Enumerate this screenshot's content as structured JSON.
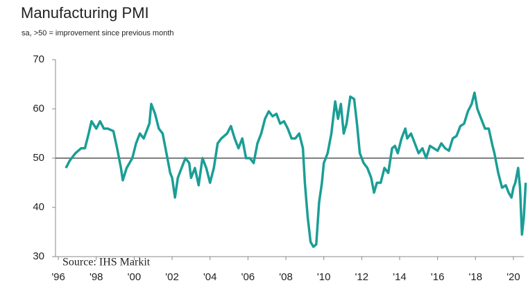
{
  "chart_data": {
    "type": "line",
    "title": "Manufacturing PMI",
    "subtitle": "sa, >50 = improvement since previous month",
    "source": "Source: IHS Markit",
    "xlim": [
      1995.85,
      2020.55
    ],
    "ylim": [
      30,
      70
    ],
    "yticks": [
      30,
      40,
      50,
      60,
      70
    ],
    "xticks": [
      {
        "value": 1996,
        "label": "'96"
      },
      {
        "value": 1998,
        "label": "'98"
      },
      {
        "value": 2000,
        "label": "'00"
      },
      {
        "value": 2002,
        "label": "'02"
      },
      {
        "value": 2004,
        "label": "'04"
      },
      {
        "value": 2006,
        "label": "'06"
      },
      {
        "value": 2008,
        "label": "'08"
      },
      {
        "value": 2010,
        "label": "'10"
      },
      {
        "value": 2012,
        "label": "'12"
      },
      {
        "value": 2014,
        "label": "'14"
      },
      {
        "value": 2016,
        "label": "'16"
      },
      {
        "value": 2018,
        "label": "'18"
      },
      {
        "value": 2020,
        "label": "'20"
      }
    ],
    "reference_line": 50,
    "grid": false,
    "series": [
      {
        "color": "#1a9e96",
        "x": [
          1996.4,
          1996.6,
          1996.9,
          1997.2,
          1997.4,
          1997.6,
          1997.75,
          1998.0,
          1998.2,
          1998.4,
          1998.6,
          1998.9,
          1999.1,
          1999.3,
          1999.4,
          1999.6,
          1999.9,
          2000.1,
          2000.3,
          2000.5,
          2000.8,
          2000.9,
          2001.1,
          2001.3,
          2001.5,
          2001.7,
          2001.9,
          2002.0,
          2002.15,
          2002.3,
          2002.5,
          2002.7,
          2002.9,
          2003.0,
          2003.2,
          2003.4,
          2003.6,
          2003.8,
          2004.0,
          2004.2,
          2004.4,
          2004.6,
          2004.9,
          2005.1,
          2005.3,
          2005.5,
          2005.7,
          2005.9,
          2006.1,
          2006.3,
          2006.5,
          2006.7,
          2006.9,
          2007.1,
          2007.3,
          2007.5,
          2007.7,
          2007.9,
          2008.1,
          2008.3,
          2008.5,
          2008.7,
          2008.9,
          2009.0,
          2009.15,
          2009.3,
          2009.45,
          2009.6,
          2009.75,
          2009.9,
          2010.0,
          2010.2,
          2010.4,
          2010.6,
          2010.75,
          2010.9,
          2011.05,
          2011.2,
          2011.4,
          2011.6,
          2011.75,
          2011.9,
          2012.1,
          2012.3,
          2012.5,
          2012.65,
          2012.8,
          2013.0,
          2013.2,
          2013.4,
          2013.6,
          2013.75,
          2013.9,
          2014.1,
          2014.3,
          2014.4,
          2014.6,
          2014.8,
          2015.0,
          2015.2,
          2015.4,
          2015.6,
          2015.8,
          2016.0,
          2016.2,
          2016.4,
          2016.6,
          2016.8,
          2017.0,
          2017.2,
          2017.4,
          2017.6,
          2017.8,
          2017.95,
          2018.1,
          2018.3,
          2018.5,
          2018.7,
          2018.9,
          2019.0,
          2019.2,
          2019.4,
          2019.6,
          2019.75,
          2019.9,
          2020.0,
          2020.1,
          2020.25,
          2020.35,
          2020.45,
          2020.55,
          2020.65
        ],
        "values": [
          48,
          49.5,
          51,
          52,
          52,
          55,
          57.5,
          56,
          57.5,
          56,
          56,
          55.5,
          52,
          48,
          45.5,
          48,
          50,
          53,
          55,
          54,
          57,
          61,
          59,
          56,
          55,
          51,
          47,
          46,
          42,
          46,
          48,
          50,
          49,
          46,
          48,
          44.5,
          50,
          48,
          45,
          48,
          53,
          54,
          55,
          56.5,
          54,
          52,
          54,
          50,
          50,
          49,
          53,
          55,
          58,
          59.5,
          58.5,
          59,
          57,
          57.5,
          56,
          54,
          54,
          55,
          52,
          45,
          38,
          33,
          32,
          32.5,
          41,
          45,
          49,
          51,
          55,
          61.5,
          58,
          61,
          55,
          57,
          62.5,
          62,
          57,
          51,
          49,
          48,
          46,
          43,
          45,
          45,
          48,
          47,
          52,
          52.5,
          51,
          54,
          56,
          54,
          55,
          53,
          51,
          52,
          50,
          52.5,
          52,
          51.5,
          53,
          52,
          51.5,
          54,
          54.5,
          56.5,
          57,
          59.5,
          61,
          63.3,
          60,
          58,
          56,
          56,
          52.5,
          51,
          47,
          44,
          44.5,
          43,
          42,
          44,
          45,
          48,
          44,
          34.5,
          38,
          45
        ]
      }
    ]
  }
}
